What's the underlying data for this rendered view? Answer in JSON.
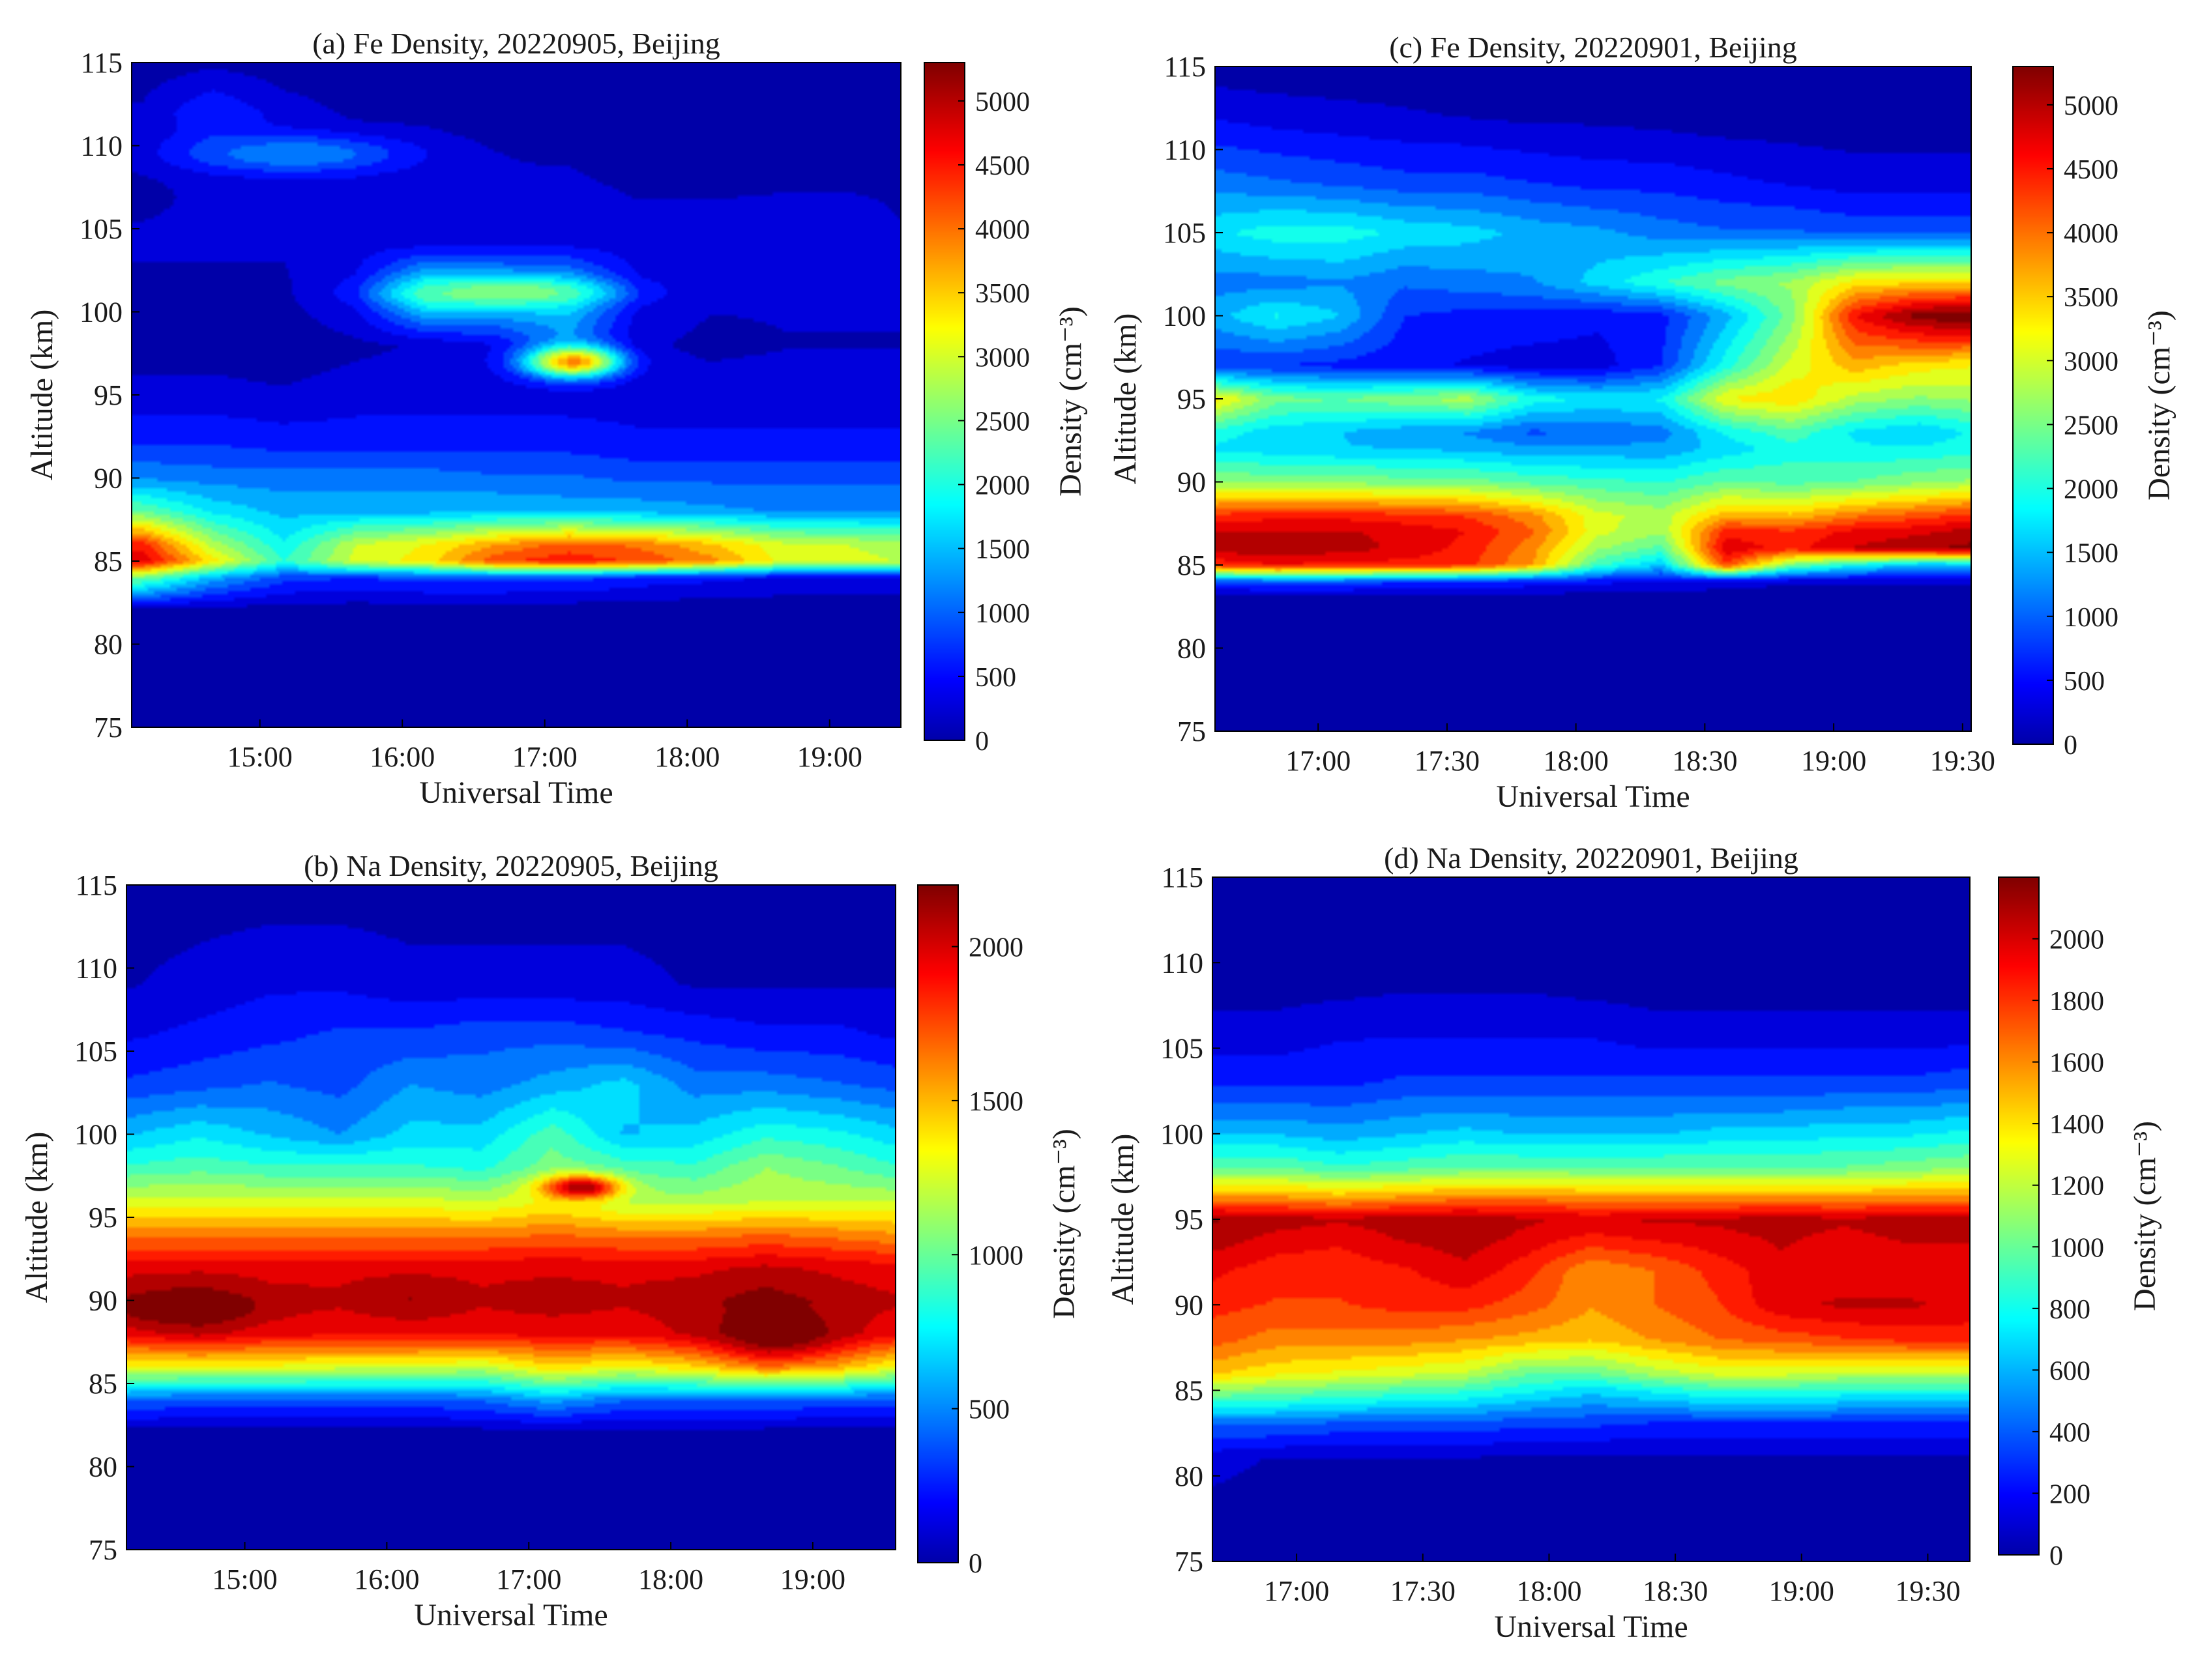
{
  "colors": {
    "colormap": "jet",
    "background_density": "#00008f"
  },
  "chart_data": [
    {
      "id": "a",
      "type": "heatmap",
      "title": "(a)  Fe Density, 20220905, Beijing",
      "xlabel": "Universal Time",
      "ylabel": "Altitude (km)",
      "colorbar_label": "Density (cm⁻³)",
      "x_range": [
        "14:06",
        "19:30"
      ],
      "xticks": [
        "15:00",
        "16:00",
        "17:00",
        "18:00",
        "19:00"
      ],
      "ylim": [
        75,
        115
      ],
      "yticks": [
        75,
        80,
        85,
        90,
        95,
        100,
        105,
        110,
        115
      ],
      "clim": [
        0,
        5300
      ],
      "cticks": [
        0,
        500,
        1000,
        1500,
        2000,
        2500,
        3000,
        3500,
        4000,
        4500,
        5000
      ],
      "time_grid": [
        "14:10",
        "14:40",
        "15:10",
        "15:40",
        "16:10",
        "16:40",
        "17:10",
        "17:40",
        "18:10",
        "18:40",
        "19:10",
        "19:30"
      ],
      "alt_grid": [
        75,
        82,
        84,
        85,
        86,
        88,
        90,
        92,
        95,
        98,
        101,
        104,
        108,
        112,
        115
      ],
      "values": [
        [
          0,
          0,
          0,
          0,
          0,
          0,
          0,
          0,
          0,
          0,
          0,
          0
        ],
        [
          100,
          100,
          100,
          80,
          80,
          80,
          60,
          60,
          60,
          60,
          60,
          60
        ],
        [
          2500,
          1500,
          900,
          800,
          900,
          900,
          900,
          700,
          600,
          500,
          500,
          500
        ],
        [
          4700,
          3300,
          2100,
          3000,
          3300,
          4200,
          4400,
          4200,
          3800,
          3100,
          3000,
          2900
        ],
        [
          4400,
          2800,
          1900,
          2900,
          3200,
          3700,
          4100,
          3900,
          3500,
          3000,
          2900,
          2800
        ],
        [
          2400,
          1800,
          1500,
          1500,
          1500,
          1600,
          1500,
          1500,
          1400,
          1300,
          1300,
          1300
        ],
        [
          1300,
          1200,
          1200,
          1200,
          1200,
          1100,
          1100,
          1000,
          1000,
          1000,
          1000,
          1000
        ],
        [
          800,
          800,
          700,
          700,
          700,
          700,
          700,
          600,
          600,
          600,
          600,
          600
        ],
        [
          350,
          350,
          300,
          400,
          400,
          400,
          400,
          400,
          400,
          400,
          400,
          400
        ],
        [
          150,
          150,
          100,
          200,
          300,
          500,
          1200,
          300,
          200,
          250,
          250,
          250
        ],
        [
          200,
          200,
          200,
          600,
          2200,
          2000,
          1800,
          500,
          300,
          300,
          300,
          300
        ],
        [
          300,
          300,
          300,
          400,
          500,
          500,
          500,
          400,
          400,
          500,
          500,
          300
        ],
        [
          200,
          300,
          350,
          350,
          300,
          300,
          300,
          200,
          200,
          200,
          200,
          200
        ],
        [
          300,
          800,
          400,
          200,
          200,
          100,
          100,
          100,
          100,
          100,
          100,
          100
        ],
        [
          100,
          200,
          100,
          100,
          100,
          100,
          100,
          100,
          100,
          100,
          100,
          100
        ]
      ],
      "hotspots": [
        {
          "t": "17:12",
          "alt": 97.0,
          "value": 3800,
          "w": 0.06,
          "h": 0.9
        },
        {
          "t": "16:45",
          "alt": 101.2,
          "value": 2600,
          "w": 0.12,
          "h": 0.8
        },
        {
          "t": "15:15",
          "alt": 109.5,
          "value": 1300,
          "w": 0.15,
          "h": 1.2
        }
      ]
    },
    {
      "id": "b",
      "type": "heatmap",
      "title": "(b)  Na Density, 20220905, Beijing",
      "xlabel": "Universal Time",
      "ylabel": "Altitude (km)",
      "colorbar_label": "Density (cm⁻³)",
      "x_range": [
        "14:10",
        "19:35"
      ],
      "xticks": [
        "15:00",
        "16:00",
        "17:00",
        "18:00",
        "19:00"
      ],
      "ylim": [
        75,
        115
      ],
      "yticks": [
        75,
        80,
        85,
        90,
        95,
        100,
        105,
        110,
        115
      ],
      "clim": [
        0,
        2200
      ],
      "cticks": [
        0,
        500,
        1000,
        1500,
        2000
      ],
      "time_grid": [
        "14:10",
        "14:40",
        "15:10",
        "15:40",
        "16:10",
        "16:40",
        "17:10",
        "17:40",
        "18:10",
        "18:40",
        "19:10",
        "19:35"
      ],
      "alt_grid": [
        75,
        82,
        84,
        86,
        88,
        90,
        92,
        94,
        96,
        98,
        100,
        103,
        106,
        109,
        115
      ],
      "values": [
        [
          0,
          0,
          0,
          0,
          0,
          0,
          0,
          0,
          0,
          0,
          0,
          0
        ],
        [
          50,
          50,
          50,
          50,
          50,
          50,
          50,
          50,
          50,
          50,
          50,
          50
        ],
        [
          450,
          400,
          400,
          400,
          400,
          450,
          600,
          450,
          450,
          450,
          400,
          400
        ],
        [
          1300,
          1300,
          1300,
          1250,
          1250,
          1200,
          1400,
          1300,
          1400,
          1600,
          1500,
          1300
        ],
        [
          1900,
          2000,
          1900,
          1900,
          1900,
          1900,
          1900,
          1900,
          2000,
          2100,
          2000,
          1900
        ],
        [
          2050,
          2150,
          2000,
          2000,
          2100,
          2000,
          2050,
          2000,
          2050,
          2150,
          2050,
          2000
        ],
        [
          1950,
          1950,
          1950,
          1950,
          1950,
          1950,
          1950,
          1950,
          1950,
          2000,
          1950,
          1900
        ],
        [
          1600,
          1600,
          1600,
          1600,
          1600,
          1600,
          1650,
          1600,
          1600,
          1650,
          1600,
          1550
        ],
        [
          1250,
          1250,
          1250,
          1250,
          1250,
          1200,
          1300,
          1150,
          1150,
          1200,
          1200,
          1200
        ],
        [
          900,
          950,
          900,
          900,
          900,
          850,
          1050,
          950,
          900,
          1100,
          1000,
          900
        ],
        [
          650,
          750,
          650,
          550,
          700,
          700,
          950,
          650,
          700,
          850,
          800,
          700
        ],
        [
          350,
          400,
          450,
          400,
          550,
          500,
          600,
          700,
          500,
          500,
          450,
          400
        ],
        [
          200,
          250,
          300,
          350,
          350,
          400,
          400,
          350,
          300,
          250,
          250,
          200
        ],
        [
          100,
          150,
          200,
          200,
          150,
          150,
          150,
          150,
          100,
          100,
          100,
          100
        ],
        [
          50,
          50,
          50,
          50,
          50,
          50,
          50,
          50,
          50,
          50,
          50,
          50
        ]
      ],
      "hotspots": [
        {
          "t": "17:22",
          "alt": 96.8,
          "value": 2100,
          "w": 0.05,
          "h": 0.7
        },
        {
          "t": "18:45",
          "alt": 88.0,
          "value": 2200,
          "w": 0.07,
          "h": 1.2
        },
        {
          "t": "14:35",
          "alt": 89.5,
          "value": 2200,
          "w": 0.1,
          "h": 1.0
        }
      ]
    },
    {
      "id": "c",
      "type": "heatmap",
      "title": "(c)  Fe Density, 20220901, Beijing",
      "xlabel": "Universal Time",
      "ylabel": "Altitude (km)",
      "colorbar_label": "Density (cm⁻³)",
      "x_range": [
        "16:36",
        "19:32"
      ],
      "xticks": [
        "17:00",
        "17:30",
        "18:00",
        "18:30",
        "19:00",
        "19:30"
      ],
      "ylim": [
        75,
        115
      ],
      "yticks": [
        75,
        80,
        85,
        90,
        95,
        100,
        105,
        110,
        115
      ],
      "clim": [
        0,
        5300
      ],
      "cticks": [
        0,
        500,
        1000,
        1500,
        2000,
        2500,
        3000,
        3500,
        4000,
        4500,
        5000
      ],
      "time_grid": [
        "16:36",
        "16:50",
        "17:05",
        "17:20",
        "17:35",
        "17:50",
        "18:05",
        "18:20",
        "18:35",
        "18:50",
        "19:05",
        "19:20",
        "19:32"
      ],
      "alt_grid": [
        75,
        83,
        84,
        85,
        86,
        87,
        88,
        90,
        92,
        93,
        95,
        97,
        100,
        102,
        105,
        108,
        112,
        115
      ],
      "values": [
        [
          0,
          0,
          0,
          0,
          0,
          0,
          0,
          0,
          0,
          0,
          0,
          0,
          0
        ],
        [
          100,
          100,
          100,
          100,
          100,
          100,
          100,
          100,
          100,
          100,
          100,
          100,
          100
        ],
        [
          900,
          1000,
          1000,
          800,
          800,
          700,
          600,
          500,
          400,
          300,
          300,
          300,
          300
        ],
        [
          4300,
          4500,
          4400,
          4400,
          4300,
          3700,
          2200,
          1600,
          4200,
          2500,
          1900,
          1500,
          1500
        ],
        [
          4900,
          5000,
          4900,
          4700,
          4400,
          3800,
          2700,
          2300,
          4700,
          4400,
          4800,
          5000,
          5100
        ],
        [
          4800,
          4800,
          4800,
          4700,
          4500,
          4000,
          3000,
          2700,
          4400,
          4300,
          4600,
          4700,
          4900
        ],
        [
          4300,
          4400,
          4400,
          4300,
          4200,
          3800,
          3000,
          2800,
          3600,
          3500,
          3900,
          4100,
          4300
        ],
        [
          2600,
          2600,
          2600,
          2500,
          2500,
          2300,
          2200,
          2100,
          2400,
          2300,
          2400,
          2600,
          2700
        ],
        [
          1800,
          1700,
          1600,
          1600,
          1500,
          1400,
          1400,
          1400,
          1700,
          2000,
          1900,
          1900,
          2000
        ],
        [
          2000,
          1700,
          1600,
          1400,
          1300,
          1000,
          1100,
          1200,
          1900,
          2300,
          1800,
          1600,
          1900
        ],
        [
          3300,
          2500,
          2400,
          2600,
          2800,
          2000,
          1800,
          1900,
          3200,
          3400,
          2800,
          2600,
          2700
        ],
        [
          800,
          800,
          700,
          600,
          500,
          400,
          400,
          800,
          2000,
          3000,
          3600,
          3300,
          3200
        ],
        [
          1500,
          1900,
          1600,
          800,
          700,
          700,
          600,
          700,
          1500,
          2500,
          4500,
          5200,
          5300
        ],
        [
          1200,
          1200,
          1300,
          1100,
          1200,
          1300,
          1700,
          2100,
          2500,
          2700,
          3300,
          3400,
          3400
        ],
        [
          1800,
          2000,
          2000,
          1800,
          1700,
          1500,
          1400,
          1200,
          1100,
          1100,
          1000,
          1000,
          1000
        ],
        [
          1200,
          1100,
          1000,
          900,
          900,
          800,
          700,
          700,
          600,
          500,
          400,
          400,
          400
        ],
        [
          500,
          400,
          350,
          300,
          250,
          200,
          200,
          150,
          100,
          100,
          100,
          100,
          100
        ],
        [
          100,
          100,
          100,
          100,
          100,
          100,
          100,
          100,
          100,
          100,
          100,
          100,
          100
        ]
      ],
      "hotspots": []
    },
    {
      "id": "d",
      "type": "heatmap",
      "title": "(d)  Na Density, 20220901, Beijing",
      "xlabel": "Universal Time",
      "ylabel": "Altitude (km)",
      "colorbar_label": "Density (cm⁻³)",
      "x_range": [
        "16:40",
        "19:40"
      ],
      "xticks": [
        "17:00",
        "17:30",
        "18:00",
        "18:30",
        "19:00",
        "19:30"
      ],
      "ylim": [
        75,
        115
      ],
      "yticks": [
        75,
        80,
        85,
        90,
        95,
        100,
        105,
        110,
        115
      ],
      "clim": [
        0,
        2200
      ],
      "cticks": [
        0,
        200,
        400,
        600,
        800,
        1000,
        1200,
        1400,
        1600,
        1800,
        2000
      ],
      "time_grid": [
        "16:40",
        "16:55",
        "17:10",
        "17:25",
        "17:40",
        "17:55",
        "18:10",
        "18:25",
        "18:40",
        "18:55",
        "19:10",
        "19:25",
        "19:40"
      ],
      "alt_grid": [
        75,
        81,
        83,
        85,
        86,
        88,
        90,
        92,
        94,
        95,
        96,
        98,
        100,
        103,
        106,
        109,
        115
      ],
      "values": [
        [
          0,
          0,
          0,
          0,
          0,
          0,
          0,
          0,
          0,
          0,
          0,
          0,
          0
        ],
        [
          150,
          100,
          100,
          100,
          100,
          80,
          80,
          80,
          80,
          80,
          80,
          80,
          80
        ],
        [
          450,
          450,
          400,
          400,
          400,
          350,
          350,
          300,
          300,
          300,
          300,
          300,
          300
        ],
        [
          1100,
          1050,
          1000,
          950,
          900,
          800,
          700,
          800,
          900,
          900,
          850,
          850,
          850
        ],
        [
          1450,
          1350,
          1300,
          1250,
          1200,
          1000,
          1000,
          1150,
          1250,
          1250,
          1200,
          1200,
          1200
        ],
        [
          1700,
          1600,
          1600,
          1600,
          1550,
          1500,
          1450,
          1550,
          1650,
          1700,
          1750,
          1800,
          1800
        ],
        [
          1800,
          1750,
          1750,
          1800,
          1800,
          1700,
          1550,
          1650,
          1750,
          1950,
          2000,
          2000,
          1950
        ],
        [
          1900,
          1800,
          1800,
          1850,
          1950,
          1800,
          1550,
          1650,
          1800,
          1950,
          1900,
          1900,
          1900
        ],
        [
          2050,
          1950,
          1900,
          2000,
          2050,
          1950,
          1850,
          1900,
          1950,
          2000,
          1950,
          2000,
          2000
        ],
        [
          2100,
          2050,
          2000,
          2050,
          2050,
          2000,
          1950,
          2000,
          2000,
          2050,
          2000,
          2050,
          2050
        ],
        [
          1650,
          1650,
          1600,
          1650,
          1700,
          1700,
          1650,
          1650,
          1650,
          1650,
          1650,
          1650,
          1650
        ],
        [
          1000,
          1000,
          900,
          950,
          1000,
          1000,
          1000,
          1000,
          1000,
          1000,
          1000,
          1050,
          1100
        ],
        [
          650,
          650,
          600,
          650,
          700,
          650,
          650,
          650,
          700,
          700,
          750,
          750,
          800
        ],
        [
          300,
          300,
          300,
          350,
          350,
          350,
          350,
          350,
          350,
          350,
          350,
          350,
          400
        ],
        [
          150,
          150,
          200,
          200,
          200,
          200,
          200,
          150,
          150,
          150,
          150,
          150,
          150
        ],
        [
          50,
          50,
          50,
          80,
          80,
          80,
          50,
          50,
          50,
          50,
          50,
          50,
          50
        ],
        [
          30,
          30,
          30,
          30,
          30,
          30,
          30,
          30,
          30,
          30,
          30,
          30,
          30
        ]
      ],
      "hotspots": []
    }
  ]
}
